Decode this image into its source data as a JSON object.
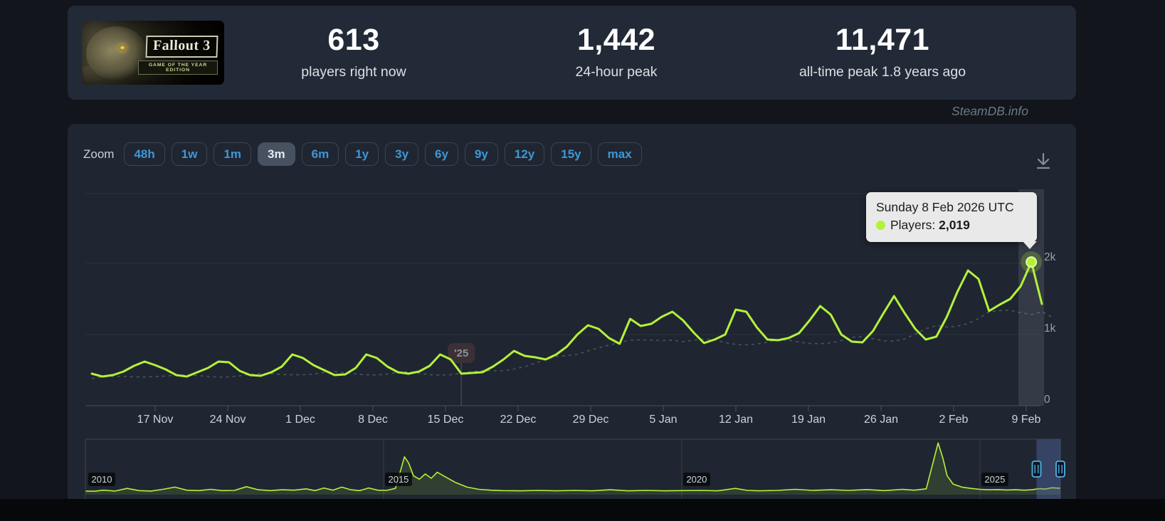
{
  "page": {
    "watermark": "SteamDB.info"
  },
  "header": {
    "banner": {
      "title": "Fallout 3",
      "subtitle": "GAME OF THE YEAR EDITION"
    },
    "stats": [
      {
        "value": "613",
        "label": "players right now"
      },
      {
        "value": "1,442",
        "label": "24-hour peak"
      },
      {
        "value": "11,471",
        "label": "all-time peak 1.8 years ago"
      }
    ]
  },
  "toolbar": {
    "zoom_label": "Zoom",
    "ranges": [
      "48h",
      "1w",
      "1m",
      "3m",
      "6m",
      "1y",
      "3y",
      "6y",
      "9y",
      "12y",
      "15y",
      "max"
    ],
    "selected": "3m",
    "download_icon": "download-chart-icon"
  },
  "tooltip": {
    "date": "Sunday 8 Feb 2026 UTC",
    "series_label": "Players:",
    "value": "2,019"
  },
  "colors": {
    "players_line": "#b4f13a",
    "average_line": "rgba(148,158,168,0.38)",
    "button_text": "#3e97d8",
    "tooltip_bg": "#e9e9e9",
    "navigator_mask": "rgba(95,115,185,0.38)",
    "handle_border": "#4fb0e8"
  },
  "chart_data": [
    {
      "type": "line",
      "title": "Concurrent Steam players, 3 month zoom",
      "x_tick_labels": [
        "17 Nov",
        "24 Nov",
        "1 Dec",
        "8 Dec",
        "15 Dec",
        "22 Dec",
        "29 Dec",
        "5 Jan",
        "12 Jan",
        "19 Jan",
        "26 Jan",
        "2 Feb",
        "9 Feb"
      ],
      "y_tick_labels": [
        "0",
        "1k",
        "2k"
      ],
      "ylim": [
        0,
        3080
      ],
      "grid": true,
      "year_marker": {
        "label": "'25",
        "day_index": 35
      },
      "series": [
        {
          "name": "Players",
          "start_date": "11 Nov 2025",
          "interval_days": 1,
          "values": [
            450,
            410,
            430,
            480,
            560,
            620,
            570,
            510,
            430,
            410,
            470,
            530,
            620,
            610,
            490,
            430,
            420,
            470,
            550,
            720,
            670,
            570,
            500,
            430,
            440,
            530,
            720,
            670,
            550,
            470,
            450,
            480,
            560,
            720,
            650,
            450,
            460,
            470,
            550,
            650,
            770,
            700,
            680,
            650,
            720,
            830,
            1000,
            1130,
            1080,
            950,
            870,
            1220,
            1120,
            1150,
            1250,
            1320,
            1200,
            1030,
            880,
            930,
            1000,
            1350,
            1320,
            1100,
            930,
            920,
            950,
            1020,
            1200,
            1400,
            1280,
            1000,
            900,
            890,
            1050,
            1300,
            1540,
            1300,
            1080,
            930,
            970,
            1250,
            1600,
            1900,
            1780,
            1330,
            1420,
            1500,
            1680,
            2019,
            1430
          ]
        },
        {
          "name": "Average trend (dashed)",
          "derived": "9-day moving average scaled 0.82"
        }
      ],
      "highlighted_point": {
        "date": "Sunday 8 Feb 2026 UTC",
        "players": 2019,
        "day_index": 89
      }
    },
    {
      "type": "area",
      "title": "Navigator: full player history",
      "x_year_labels": [
        "2010",
        "2015",
        "2020",
        "2025"
      ],
      "year_gridlines": [
        2015,
        2020,
        2025
      ],
      "selected_window_years": [
        2025.95,
        2026.35
      ],
      "points_year_players": [
        [
          2010.0,
          500
        ],
        [
          2010.15,
          450
        ],
        [
          2010.3,
          700
        ],
        [
          2010.5,
          500
        ],
        [
          2010.7,
          1100
        ],
        [
          2010.9,
          600
        ],
        [
          2011.1,
          500
        ],
        [
          2011.3,
          900
        ],
        [
          2011.5,
          1400
        ],
        [
          2011.7,
          700
        ],
        [
          2011.9,
          600
        ],
        [
          2012.1,
          900
        ],
        [
          2012.3,
          600
        ],
        [
          2012.5,
          650
        ],
        [
          2012.7,
          1500
        ],
        [
          2012.9,
          800
        ],
        [
          2013.1,
          600
        ],
        [
          2013.3,
          800
        ],
        [
          2013.5,
          700
        ],
        [
          2013.7,
          1000
        ],
        [
          2013.85,
          600
        ],
        [
          2014.0,
          1200
        ],
        [
          2014.15,
          700
        ],
        [
          2014.3,
          1400
        ],
        [
          2014.45,
          800
        ],
        [
          2014.6,
          600
        ],
        [
          2014.75,
          1200
        ],
        [
          2014.9,
          700
        ],
        [
          2015.05,
          650
        ],
        [
          2015.2,
          1100
        ],
        [
          2015.35,
          8300
        ],
        [
          2015.42,
          6900
        ],
        [
          2015.5,
          4000
        ],
        [
          2015.6,
          3200
        ],
        [
          2015.7,
          4400
        ],
        [
          2015.8,
          3400
        ],
        [
          2015.9,
          4800
        ],
        [
          2016.0,
          4000
        ],
        [
          2016.2,
          2500
        ],
        [
          2016.4,
          1400
        ],
        [
          2016.6,
          900
        ],
        [
          2016.8,
          700
        ],
        [
          2017.0,
          600
        ],
        [
          2017.3,
          550
        ],
        [
          2017.6,
          650
        ],
        [
          2017.9,
          550
        ],
        [
          2018.2,
          650
        ],
        [
          2018.5,
          550
        ],
        [
          2018.8,
          800
        ],
        [
          2019.1,
          550
        ],
        [
          2019.4,
          650
        ],
        [
          2019.7,
          550
        ],
        [
          2020.0,
          600
        ],
        [
          2020.3,
          650
        ],
        [
          2020.6,
          550
        ],
        [
          2020.9,
          1100
        ],
        [
          2021.1,
          650
        ],
        [
          2021.3,
          550
        ],
        [
          2021.6,
          650
        ],
        [
          2021.9,
          900
        ],
        [
          2022.2,
          650
        ],
        [
          2022.5,
          800
        ],
        [
          2022.8,
          650
        ],
        [
          2023.1,
          850
        ],
        [
          2023.4,
          600
        ],
        [
          2023.7,
          900
        ],
        [
          2023.9,
          700
        ],
        [
          2024.1,
          1000
        ],
        [
          2024.3,
          11471
        ],
        [
          2024.38,
          8000
        ],
        [
          2024.45,
          4000
        ],
        [
          2024.55,
          2100
        ],
        [
          2024.7,
          1400
        ],
        [
          2024.85,
          1100
        ],
        [
          2025.0,
          900
        ],
        [
          2025.15,
          800
        ],
        [
          2025.3,
          850
        ],
        [
          2025.45,
          750
        ],
        [
          2025.6,
          800
        ],
        [
          2025.75,
          700
        ],
        [
          2025.87,
          800
        ],
        [
          2026.0,
          1050
        ],
        [
          2026.1,
          950
        ],
        [
          2026.2,
          1250
        ],
        [
          2026.35,
          1150
        ]
      ]
    }
  ]
}
